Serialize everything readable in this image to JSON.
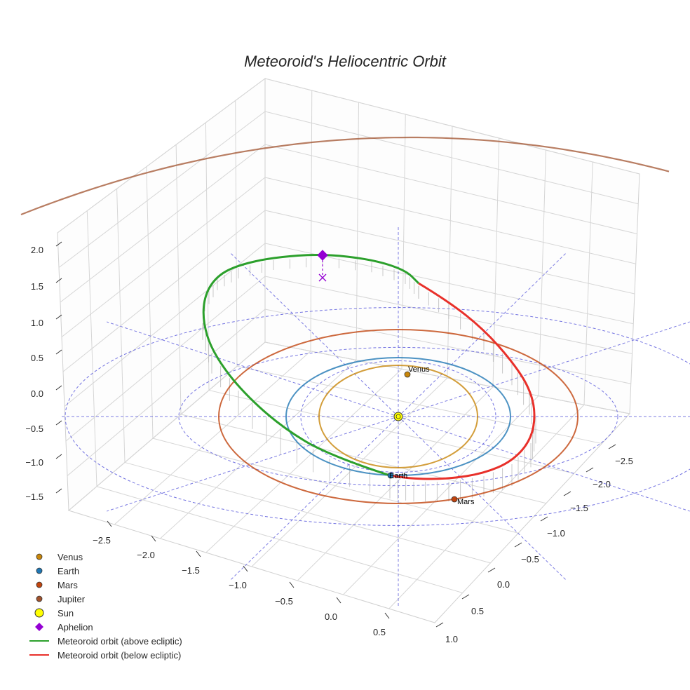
{
  "chart_data": {
    "type": "line",
    "projection": "3d",
    "title": "Meteoroid's Heliocentric Orbit",
    "axes": {
      "x": {
        "ticks": [
          "−2.5",
          "−2.0",
          "−1.5",
          "−1.0",
          "−0.5",
          "0.0",
          "0.5"
        ]
      },
      "y": {
        "ticks": [
          "−2.5",
          "−2.0",
          "−1.5",
          "−1.0",
          "−0.5",
          "0.0",
          "0.5",
          "1.0"
        ]
      },
      "z": {
        "ticks": [
          "2.0",
          "1.5",
          "1.0",
          "0.5",
          "0.0",
          "−0.5",
          "−1.0",
          "−1.5"
        ]
      }
    },
    "planets": [
      {
        "name": "Venus",
        "semi_major_au": 0.72,
        "color": "#c8860a",
        "label": "Venus"
      },
      {
        "name": "Earth",
        "semi_major_au": 1.0,
        "color": "#1f77b4",
        "label": "Earth"
      },
      {
        "name": "Mars",
        "semi_major_au": 1.52,
        "color": "#c1440e",
        "label": "Mars"
      },
      {
        "name": "Jupiter",
        "semi_major_au": 5.2,
        "color": "#a0522d"
      }
    ],
    "reference_circles_au": [
      1,
      2,
      3
    ],
    "sun": {
      "name": "Sun",
      "color": "#ffff00"
    },
    "aphelion": {
      "name": "Aphelion",
      "color": "#9400d3",
      "z_au": 2.0
    },
    "series": [
      {
        "name": "Meteoroid orbit (above ecliptic)",
        "color": "#2ca02c"
      },
      {
        "name": "Meteoroid orbit (below ecliptic)",
        "color": "#e8302a"
      }
    ],
    "legend": [
      {
        "label": "Venus",
        "marker": "circle",
        "color": "#c8860a"
      },
      {
        "label": "Earth",
        "marker": "circle",
        "color": "#1f77b4"
      },
      {
        "label": "Mars",
        "marker": "circle",
        "color": "#c1440e"
      },
      {
        "label": "Jupiter",
        "marker": "circle",
        "color": "#a0522d"
      },
      {
        "label": "Sun",
        "marker": "sun",
        "color": "#ffff00"
      },
      {
        "label": "Aphelion",
        "marker": "diamond",
        "color": "#9400d3"
      },
      {
        "label": "Meteoroid orbit (above ecliptic)",
        "marker": "line",
        "color": "#2ca02c"
      },
      {
        "label": "Meteoroid orbit (below ecliptic)",
        "marker": "line",
        "color": "#e8302a"
      }
    ],
    "legend_position": "bottom-left",
    "grid": true
  }
}
